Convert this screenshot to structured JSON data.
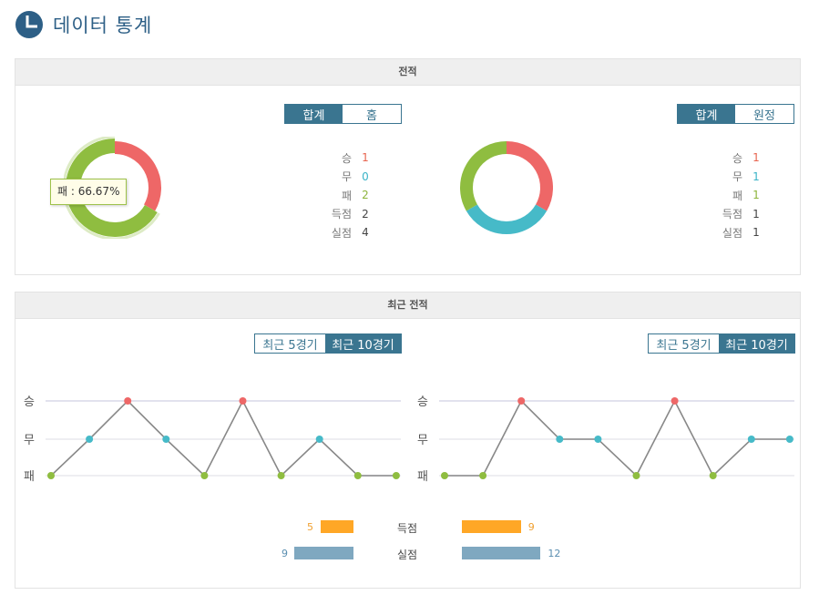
{
  "page": {
    "title": "데이터 통계"
  },
  "record": {
    "section_title": "전적",
    "left": {
      "tabs": [
        {
          "label": "합계",
          "active": true
        },
        {
          "label": "홈",
          "active": false
        }
      ],
      "stats": [
        {
          "label": "승",
          "value": "1",
          "color": "#e8644f"
        },
        {
          "label": "무",
          "value": "0",
          "color": "#3ab3c7"
        },
        {
          "label": "패",
          "value": "2",
          "color": "#8db43b"
        },
        {
          "label": "득점",
          "value": "2",
          "color": "#555555"
        },
        {
          "label": "실점",
          "value": "4",
          "color": "#555555"
        }
      ],
      "tooltip": "패 : 66.67%",
      "donut": [
        {
          "label": "승",
          "value": 1,
          "color": "#ee6767"
        },
        {
          "label": "무",
          "value": 0,
          "color": "#46bac8"
        },
        {
          "label": "패",
          "value": 2,
          "color": "#8fbd40"
        }
      ]
    },
    "right": {
      "tabs": [
        {
          "label": "합계",
          "active": true
        },
        {
          "label": "원정",
          "active": false
        }
      ],
      "stats": [
        {
          "label": "승",
          "value": "1",
          "color": "#e8644f"
        },
        {
          "label": "무",
          "value": "1",
          "color": "#3ab3c7"
        },
        {
          "label": "패",
          "value": "1",
          "color": "#8db43b"
        },
        {
          "label": "득점",
          "value": "1",
          "color": "#555555"
        },
        {
          "label": "실점",
          "value": "1",
          "color": "#555555"
        }
      ],
      "donut": [
        {
          "label": "승",
          "value": 1,
          "color": "#ee6767"
        },
        {
          "label": "무",
          "value": 1,
          "color": "#46bac8"
        },
        {
          "label": "패",
          "value": 1,
          "color": "#8fbd40"
        }
      ]
    }
  },
  "recent": {
    "section_title": "최근 전적",
    "left_tabs": [
      {
        "label": "최근 5경기",
        "active": false
      },
      {
        "label": "최근 10경기",
        "active": true
      }
    ],
    "right_tabs": [
      {
        "label": "최근 5경기",
        "active": false
      },
      {
        "label": "최근 10경기",
        "active": true
      }
    ],
    "y_labels": [
      "승",
      "무",
      "패"
    ],
    "left_results": [
      "패",
      "무",
      "승",
      "무",
      "패",
      "승",
      "패",
      "무",
      "패",
      "패"
    ],
    "right_results": [
      "패",
      "패",
      "승",
      "무",
      "무",
      "패",
      "승",
      "패",
      "무",
      "무"
    ],
    "result_colors": {
      "승": "#ee6767",
      "무": "#46bac8",
      "패": "#8fbd40"
    },
    "compare": [
      {
        "label": "득점",
        "left": 5,
        "right": 9,
        "color": "#ffa726",
        "num_color": "#f0a030"
      },
      {
        "label": "실점",
        "left": 9,
        "right": 12,
        "color": "#7fa8c0",
        "num_color": "#5a8eb0"
      }
    ]
  }
}
